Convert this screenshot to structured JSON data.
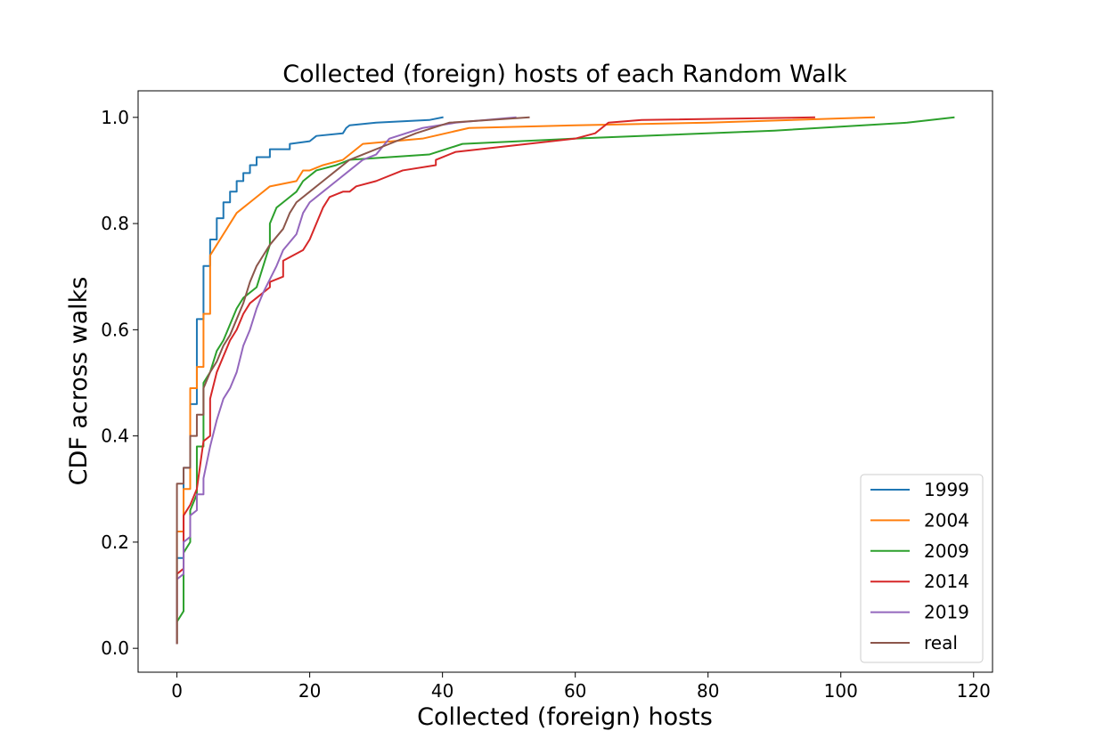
{
  "chart_data": {
    "type": "line",
    "title": "Collected (foreign) hosts of each Random Walk",
    "xlabel": "Collected (foreign) hosts",
    "ylabel": "CDF across walks",
    "xlim": [
      -5.85,
      122.85
    ],
    "ylim": [
      -0.045,
      1.05
    ],
    "xticks": [
      0,
      20,
      40,
      60,
      80,
      100,
      120
    ],
    "yticks": [
      0.0,
      0.2,
      0.4,
      0.6,
      0.8,
      1.0
    ],
    "xtick_labels": [
      "0",
      "20",
      "40",
      "60",
      "80",
      "100",
      "120"
    ],
    "ytick_labels": [
      "0.0",
      "0.2",
      "0.4",
      "0.6",
      "0.8",
      "1.0"
    ],
    "grid": false,
    "legend_position": "lower-right",
    "series": [
      {
        "name": "1999",
        "color": "#1f77b4",
        "x": [
          0,
          0,
          1,
          1,
          2,
          2,
          3,
          3,
          4,
          4,
          5,
          5,
          6,
          6,
          7,
          7,
          8,
          8,
          9,
          9,
          10,
          10,
          11,
          11,
          12,
          12,
          14,
          14,
          17,
          17,
          20,
          21,
          25,
          25.5,
          26,
          30,
          38,
          40
        ],
        "y": [
          0.01,
          0.17,
          0.17,
          0.34,
          0.34,
          0.46,
          0.46,
          0.62,
          0.62,
          0.72,
          0.72,
          0.77,
          0.77,
          0.81,
          0.81,
          0.84,
          0.84,
          0.86,
          0.86,
          0.88,
          0.88,
          0.895,
          0.895,
          0.91,
          0.91,
          0.925,
          0.925,
          0.94,
          0.94,
          0.95,
          0.955,
          0.965,
          0.97,
          0.98,
          0.985,
          0.99,
          0.995,
          1.0
        ]
      },
      {
        "name": "2004",
        "color": "#ff7f0e",
        "x": [
          0,
          0,
          1,
          1,
          2,
          2,
          3,
          3,
          4,
          4,
          5,
          5,
          6,
          7,
          8,
          9,
          10,
          11,
          12,
          14,
          18,
          19,
          20,
          22,
          25,
          28,
          37,
          44,
          60,
          80,
          105
        ],
        "y": [
          0.01,
          0.22,
          0.22,
          0.3,
          0.3,
          0.49,
          0.49,
          0.53,
          0.53,
          0.63,
          0.63,
          0.74,
          0.76,
          0.78,
          0.8,
          0.82,
          0.83,
          0.84,
          0.85,
          0.87,
          0.88,
          0.9,
          0.9,
          0.91,
          0.92,
          0.95,
          0.96,
          0.98,
          0.985,
          0.99,
          1.0
        ]
      },
      {
        "name": "2009",
        "color": "#2ca02c",
        "x": [
          0,
          0,
          1,
          1,
          2,
          2,
          3,
          3,
          4,
          4,
          5,
          6,
          7,
          8,
          9,
          10,
          12,
          13,
          14,
          14,
          15,
          16,
          17,
          18,
          19,
          21,
          24,
          26,
          38,
          43,
          60,
          90,
          110,
          117
        ],
        "y": [
          0.01,
          0.05,
          0.07,
          0.18,
          0.2,
          0.26,
          0.29,
          0.38,
          0.38,
          0.5,
          0.52,
          0.56,
          0.58,
          0.61,
          0.64,
          0.66,
          0.68,
          0.72,
          0.76,
          0.8,
          0.83,
          0.84,
          0.85,
          0.86,
          0.88,
          0.9,
          0.91,
          0.92,
          0.93,
          0.95,
          0.96,
          0.975,
          0.99,
          1.0
        ]
      },
      {
        "name": "2014",
        "color": "#d62728",
        "x": [
          0,
          0,
          1,
          1,
          2,
          3,
          4,
          5,
          5,
          6,
          7,
          8,
          9,
          10,
          11,
          12,
          14,
          14,
          16,
          16,
          19,
          20,
          21,
          22,
          23,
          25,
          26,
          27,
          30,
          34,
          39,
          39,
          42,
          60,
          63,
          65,
          70,
          96
        ],
        "y": [
          0.01,
          0.14,
          0.15,
          0.25,
          0.27,
          0.3,
          0.39,
          0.4,
          0.47,
          0.52,
          0.55,
          0.58,
          0.6,
          0.63,
          0.65,
          0.66,
          0.68,
          0.69,
          0.7,
          0.73,
          0.75,
          0.77,
          0.8,
          0.83,
          0.85,
          0.86,
          0.86,
          0.87,
          0.88,
          0.9,
          0.91,
          0.92,
          0.935,
          0.96,
          0.97,
          0.99,
          0.995,
          1.0
        ]
      },
      {
        "name": "2019",
        "color": "#9467bd",
        "x": [
          0,
          0,
          1,
          1,
          2,
          2,
          3,
          3,
          4,
          4,
          5,
          6,
          7,
          8,
          9,
          10,
          11,
          12,
          13,
          15,
          16,
          18,
          19,
          20,
          22,
          24,
          26,
          28,
          30,
          32,
          37,
          42,
          51
        ],
        "y": [
          0.01,
          0.13,
          0.14,
          0.2,
          0.21,
          0.25,
          0.26,
          0.29,
          0.29,
          0.32,
          0.38,
          0.43,
          0.47,
          0.49,
          0.52,
          0.57,
          0.6,
          0.64,
          0.67,
          0.72,
          0.75,
          0.78,
          0.82,
          0.84,
          0.86,
          0.88,
          0.9,
          0.92,
          0.93,
          0.96,
          0.98,
          0.99,
          1.0
        ]
      },
      {
        "name": "real",
        "color": "#8c564b",
        "x": [
          0,
          0,
          1,
          1,
          2,
          2,
          3,
          3,
          4,
          4,
          5,
          6,
          7,
          8,
          9,
          10,
          11,
          12,
          13,
          14,
          16,
          17,
          18,
          20,
          22,
          24,
          26,
          28,
          32,
          36,
          41,
          53
        ],
        "y": [
          0.01,
          0.31,
          0.31,
          0.34,
          0.34,
          0.4,
          0.4,
          0.44,
          0.44,
          0.49,
          0.52,
          0.54,
          0.57,
          0.59,
          0.62,
          0.65,
          0.69,
          0.72,
          0.74,
          0.76,
          0.79,
          0.82,
          0.84,
          0.86,
          0.88,
          0.9,
          0.92,
          0.93,
          0.95,
          0.97,
          0.99,
          1.0
        ]
      }
    ]
  }
}
